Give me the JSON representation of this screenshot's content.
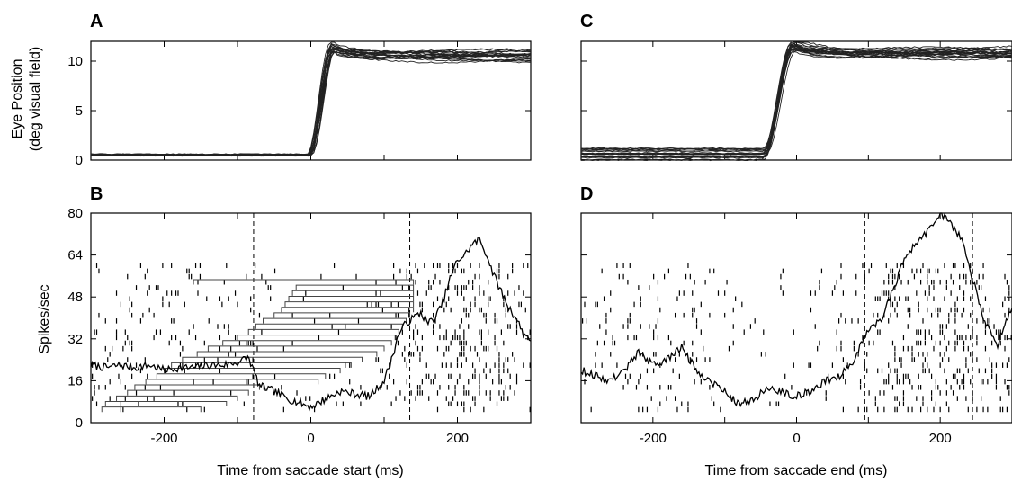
{
  "chart_data": [
    {
      "panel": "A",
      "type": "line",
      "ylabel_line1": "Eye Position",
      "ylabel_line2": "(deg visual field)",
      "xlim": [
        -300,
        300
      ],
      "ylim": [
        0,
        12
      ],
      "yticks": [
        0,
        5,
        10
      ],
      "start_level": 0.5,
      "end_level": 10.5,
      "transition_ms": [
        -2,
        30
      ],
      "trace_count": 20
    },
    {
      "panel": "B",
      "type": "line",
      "xlabel": "Time from saccade start (ms)",
      "ylabel": "Spikes/sec",
      "xlim": [
        -300,
        300
      ],
      "ylim": [
        0,
        80
      ],
      "xticks": [
        -200,
        0,
        200
      ],
      "yticks": [
        0,
        16,
        32,
        48,
        64,
        80
      ],
      "vlines": [
        -78,
        135
      ],
      "rate": {
        "x": [
          -300,
          -280,
          -260,
          -240,
          -220,
          -200,
          -180,
          -160,
          -140,
          -120,
          -100,
          -85,
          -70,
          -50,
          -30,
          -10,
          0,
          20,
          40,
          60,
          80,
          100,
          110,
          120,
          130,
          140,
          150,
          160,
          170,
          180,
          190,
          200,
          210,
          220,
          230,
          240,
          250,
          260,
          270,
          280,
          290,
          300
        ],
        "y": [
          22,
          21,
          22,
          21,
          22,
          20,
          21,
          21,
          22,
          22,
          23,
          25,
          14,
          12,
          9,
          7,
          6,
          9,
          12,
          11,
          10,
          16,
          24,
          34,
          38,
          40,
          42,
          38,
          40,
          46,
          55,
          62,
          64,
          68,
          70,
          64,
          56,
          50,
          44,
          40,
          34,
          32
        ]
      },
      "raster_rows": 27,
      "saccade_brackets": [
        {
          "row": 1,
          "start": -285,
          "end": -150
        },
        {
          "row": 2,
          "start": -280,
          "end": -115
        },
        {
          "row": 3,
          "start": -265,
          "end": -100
        },
        {
          "row": 4,
          "start": -250,
          "end": -85
        },
        {
          "row": 5,
          "start": -240,
          "end": -70
        },
        {
          "row": 6,
          "start": -225,
          "end": 10
        },
        {
          "row": 7,
          "start": -210,
          "end": 20
        },
        {
          "row": 8,
          "start": -200,
          "end": 40
        },
        {
          "row": 9,
          "start": -190,
          "end": 55
        },
        {
          "row": 10,
          "start": -175,
          "end": 70
        },
        {
          "row": 11,
          "start": -155,
          "end": 90
        },
        {
          "row": 12,
          "start": -140,
          "end": 100
        },
        {
          "row": 13,
          "start": -120,
          "end": 110
        },
        {
          "row": 14,
          "start": -100,
          "end": 115
        },
        {
          "row": 15,
          "start": -85,
          "end": 120
        },
        {
          "row": 16,
          "start": -75,
          "end": 125
        },
        {
          "row": 17,
          "start": -65,
          "end": 130
        },
        {
          "row": 18,
          "start": -50,
          "end": 135
        },
        {
          "row": 19,
          "start": -40,
          "end": 140
        },
        {
          "row": 20,
          "start": -35,
          "end": 140
        },
        {
          "row": 21,
          "start": -30,
          "end": 140
        },
        {
          "row": 22,
          "start": -25,
          "end": 140
        },
        {
          "row": 23,
          "start": -20,
          "end": 140
        },
        {
          "row": 24,
          "start": -160,
          "end": 140
        }
      ]
    },
    {
      "panel": "C",
      "type": "line",
      "xlim": [
        -300,
        300
      ],
      "ylim": [
        0,
        12
      ],
      "start_level_range": [
        0,
        1.3
      ],
      "end_level": 10.8,
      "transition_ms": [
        -45,
        -5
      ],
      "trace_count": 20
    },
    {
      "panel": "D",
      "type": "line",
      "xlabel": "Time from saccade end (ms)",
      "xlim": [
        -300,
        300
      ],
      "ylim": [
        0,
        80
      ],
      "xticks": [
        -200,
        0,
        200
      ],
      "yticks": [
        0,
        16,
        32,
        48,
        64,
        80
      ],
      "vlines": [
        95,
        245
      ],
      "rate": {
        "x": [
          -300,
          -280,
          -260,
          -240,
          -220,
          -200,
          -180,
          -160,
          -140,
          -120,
          -100,
          -80,
          -60,
          -40,
          -20,
          0,
          20,
          40,
          60,
          80,
          90,
          100,
          110,
          120,
          130,
          140,
          150,
          160,
          170,
          180,
          190,
          200,
          210,
          220,
          230,
          240,
          250,
          260,
          270,
          280,
          290,
          300
        ],
        "y": [
          20,
          18,
          16,
          20,
          27,
          22,
          24,
          29,
          20,
          16,
          12,
          7,
          9,
          13,
          12,
          10,
          12,
          16,
          18,
          24,
          30,
          36,
          38,
          40,
          48,
          55,
          62,
          66,
          70,
          72,
          76,
          80,
          78,
          74,
          70,
          60,
          50,
          40,
          34,
          30,
          38,
          44
        ]
      },
      "raster_rows": 27
    }
  ]
}
